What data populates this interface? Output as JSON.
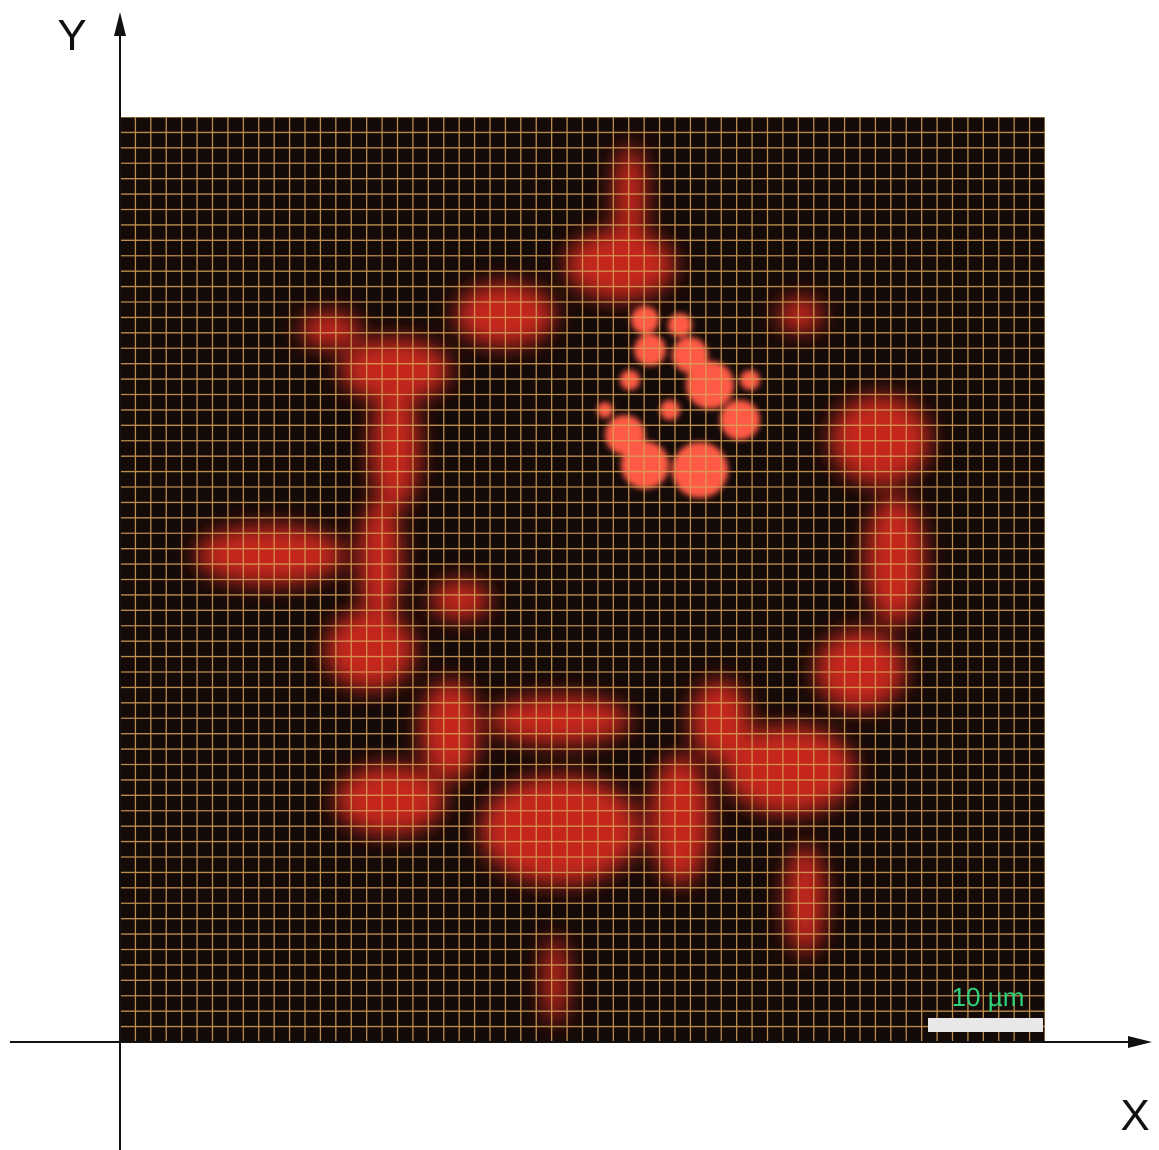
{
  "axes": {
    "y_label": "Y",
    "x_label": "X"
  },
  "scale_bar": {
    "label": "10 µm"
  }
}
